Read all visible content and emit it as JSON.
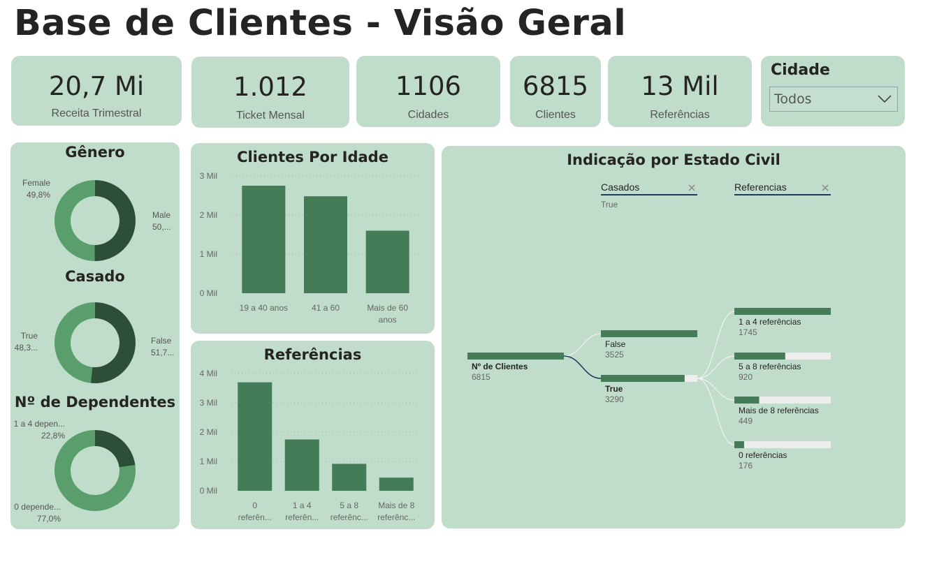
{
  "page_title": "Base de Clientes - Visão Geral",
  "kpis": [
    {
      "value": "20,7 Mi",
      "label": "Receita Trimestral"
    },
    {
      "value": "1.012",
      "label": "Ticket Mensal"
    },
    {
      "value": "1106",
      "label": "Cidades"
    },
    {
      "value": "6815",
      "label": "Clientes"
    },
    {
      "value": "13 Mil",
      "label": "Referências"
    }
  ],
  "slicer": {
    "title": "Cidade",
    "selected": "Todos"
  },
  "colors": {
    "dark": "#2e4f37",
    "mid": "#5a9e6b",
    "bar": "#437c56",
    "card": "#c0dccb",
    "track": "#ededed"
  },
  "chart_data": [
    {
      "type": "pie",
      "title": "Gênero",
      "slices": [
        {
          "name": "Male",
          "value": 50.2,
          "label": "Male",
          "pct_label": "50,..."
        },
        {
          "name": "Female",
          "value": 49.8,
          "label": "Female",
          "pct_label": "49,8%"
        }
      ]
    },
    {
      "type": "pie",
      "title": "Casado",
      "slices": [
        {
          "name": "False",
          "value": 51.7,
          "label": "False",
          "pct_label": "51,7..."
        },
        {
          "name": "True",
          "value": 48.3,
          "label": "True",
          "pct_label": "48,3..."
        }
      ]
    },
    {
      "type": "pie",
      "title": "Nº de Dependentes",
      "slices": [
        {
          "name": "1 a 4 dependentes",
          "value": 22.8,
          "label": "1 a 4 depen...",
          "pct_label": "22,8%"
        },
        {
          "name": "0 dependentes",
          "value": 77.0,
          "label": "0 depende...",
          "pct_label": "77,0%"
        }
      ]
    },
    {
      "type": "bar",
      "title": "Clientes Por Idade",
      "categories": [
        "19 a 40 anos",
        "41 a 60",
        "Mais de 60 anos"
      ],
      "category_lines": [
        [
          "19 a 40 anos"
        ],
        [
          "41 a 60"
        ],
        [
          "Mais de 60",
          "anos"
        ]
      ],
      "values": [
        2750,
        2480,
        1600
      ],
      "yticks": [
        "0 Mil",
        "1 Mil",
        "2 Mil",
        "3 Mil"
      ],
      "ylim": [
        0,
        3000
      ]
    },
    {
      "type": "bar",
      "title": "Referências",
      "categories": [
        "0 referências",
        "1 a 4 referências",
        "5 a 8 referências",
        "Mais de 8 referências"
      ],
      "category_lines": [
        [
          "0",
          "referên..."
        ],
        [
          "1 a 4",
          "referên..."
        ],
        [
          "5 a 8",
          "referênc..."
        ],
        [
          "Mais de 8",
          "referênc..."
        ]
      ],
      "values": [
        3700,
        1750,
        920,
        450
      ],
      "yticks": [
        "0 Mil",
        "1 Mil",
        "2 Mil",
        "3 Mil",
        "4 Mil"
      ],
      "ylim": [
        0,
        4000
      ]
    },
    {
      "type": "decomposition-tree",
      "title": "Indicação por Estado Civil",
      "levels": [
        {
          "header": "Casados",
          "filter": "True"
        },
        {
          "header": "Referencias",
          "filter": ""
        }
      ],
      "root": {
        "label": "Nº de Clientes",
        "value": 6815
      },
      "level1": [
        {
          "label": "False",
          "value": 3525,
          "selected": false
        },
        {
          "label": "True",
          "value": 3290,
          "selected": true
        }
      ],
      "level2": [
        {
          "label": "1 a 4 referências",
          "value": 1745
        },
        {
          "label": "5 a 8 referências",
          "value": 920
        },
        {
          "label": "Mais de 8 referências",
          "value": 449
        },
        {
          "label": "0 referências",
          "value": 176
        }
      ]
    }
  ]
}
